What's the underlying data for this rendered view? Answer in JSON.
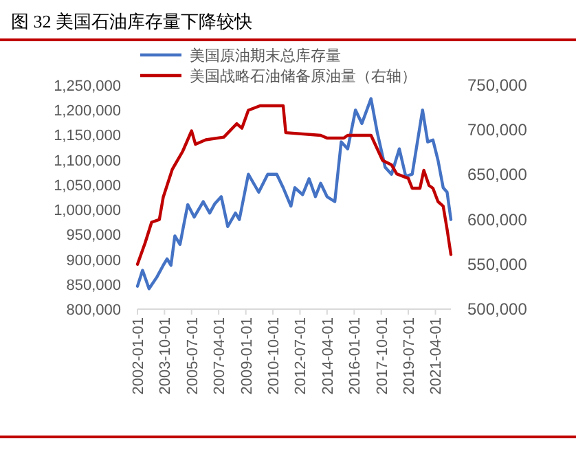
{
  "chart_data": {
    "type": "line",
    "title": "图 32 美国石油库存量下降较快",
    "xlim": [
      "2002-01-01",
      "2022-04-01"
    ],
    "xticks": [
      {
        "value": "2002-01-01",
        "label": "2002-01-01"
      },
      {
        "value": "2003-10-01",
        "label": "2003-10-01"
      },
      {
        "value": "2005-07-01",
        "label": "2005-07-01"
      },
      {
        "value": "2007-04-01",
        "label": "2007-04-01"
      },
      {
        "value": "2009-01-01",
        "label": "2009-01-01"
      },
      {
        "value": "2010-10-01",
        "label": "2010-10-01"
      },
      {
        "value": "2012-07-01",
        "label": "2012-07-01"
      },
      {
        "value": "2014-04-01",
        "label": "2014-04-01"
      },
      {
        "value": "2016-01-01",
        "label": "2016-01-01"
      },
      {
        "value": "2017-10-01",
        "label": "2017-10-01"
      },
      {
        "value": "2019-07-01",
        "label": "2019-07-01"
      },
      {
        "value": "2021-04-01",
        "label": "2021-04-01"
      }
    ],
    "ylim": [
      800000,
      1250000
    ],
    "yticks": [
      {
        "value": 800000,
        "label": "800,000"
      },
      {
        "value": 850000,
        "label": "850,000"
      },
      {
        "value": 900000,
        "label": "900,000"
      },
      {
        "value": 950000,
        "label": "950,000"
      },
      {
        "value": 1000000,
        "label": "1,000,000"
      },
      {
        "value": 1050000,
        "label": "1,050,000"
      },
      {
        "value": 1100000,
        "label": "1,100,000"
      },
      {
        "value": 1150000,
        "label": "1,150,000"
      },
      {
        "value": 1200000,
        "label": "1,200,000"
      },
      {
        "value": 1250000,
        "label": "1,250,000"
      }
    ],
    "y2lim": [
      500000,
      750000
    ],
    "y2ticks": [
      {
        "value": 500000,
        "label": "500,000"
      },
      {
        "value": 550000,
        "label": "550,000"
      },
      {
        "value": 600000,
        "label": "600,000"
      },
      {
        "value": 650000,
        "label": "650,000"
      },
      {
        "value": 700000,
        "label": "700,000"
      },
      {
        "value": 750000,
        "label": "750,000"
      }
    ],
    "legend": "top left",
    "series": [
      {
        "name": "美国原油期末总库存量",
        "color": "#4472c4",
        "x": [
          "2002-01",
          "2002-05",
          "2002-10",
          "2003-04",
          "2003-09",
          "2003-12",
          "2004-03",
          "2004-06",
          "2004-10",
          "2005-01",
          "2005-04",
          "2005-09",
          "2006-04",
          "2006-09",
          "2007-01",
          "2007-06",
          "2007-11",
          "2008-05",
          "2008-08",
          "2009-03",
          "2009-11",
          "2010-06",
          "2011-01",
          "2011-06",
          "2011-12",
          "2012-03",
          "2012-09",
          "2013-02",
          "2013-07",
          "2013-11",
          "2014-04",
          "2014-10",
          "2015-03",
          "2015-08",
          "2016-02",
          "2016-07",
          "2017-02",
          "2017-07",
          "2018-01",
          "2018-06",
          "2018-12",
          "2019-05",
          "2019-10",
          "2020-06",
          "2020-10",
          "2021-02",
          "2021-06",
          "2021-10",
          "2022-01",
          "2022-04"
        ],
        "values": [
          846000,
          878000,
          841000,
          864000,
          888000,
          901000,
          888000,
          947000,
          930000,
          971000,
          1010000,
          985000,
          1016000,
          993000,
          1012000,
          1026000,
          966000,
          993000,
          980000,
          1071000,
          1035000,
          1071000,
          1071000,
          1044000,
          1007000,
          1044000,
          1030000,
          1062000,
          1026000,
          1053000,
          1026000,
          1016000,
          1136000,
          1122000,
          1200000,
          1173000,
          1223000,
          1154000,
          1085000,
          1071000,
          1122000,
          1067000,
          1071000,
          1200000,
          1136000,
          1140000,
          1099000,
          1044000,
          1035000,
          980000
        ]
      },
      {
        "name": "美国战略石油储备原油量（右轴）",
        "color": "#c00000",
        "axis": "y2",
        "x": [
          "2002-01",
          "2002-07",
          "2002-12",
          "2003-06",
          "2003-09",
          "2004-04",
          "2004-12",
          "2005-07",
          "2005-10",
          "2006-06",
          "2007-08",
          "2008-06",
          "2008-10",
          "2009-03",
          "2009-12",
          "2011-06",
          "2011-08",
          "2013-11",
          "2014-04",
          "2015-05",
          "2015-08",
          "2017-02",
          "2017-11",
          "2018-06",
          "2018-10",
          "2019-07",
          "2019-10",
          "2020-04",
          "2020-07",
          "2020-11",
          "2021-02",
          "2021-06",
          "2021-10",
          "2022-01",
          "2022-04"
        ],
        "values": [
          550000,
          574000,
          597000,
          600000,
          625000,
          656000,
          676000,
          699000,
          684000,
          689000,
          692000,
          707000,
          702000,
          722000,
          727000,
          727000,
          697000,
          694000,
          691000,
          691000,
          694000,
          694000,
          666000,
          661000,
          651000,
          646000,
          635000,
          635000,
          655000,
          638000,
          635000,
          620000,
          615000,
          589000,
          561000
        ]
      }
    ]
  }
}
